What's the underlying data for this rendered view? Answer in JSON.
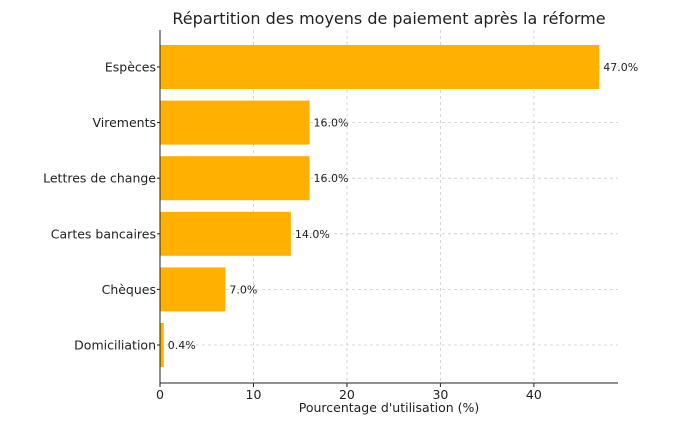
{
  "chart_data": {
    "type": "bar",
    "orientation": "horizontal",
    "title": "Répartition des moyens de paiement après la réforme",
    "xlabel": "Pourcentage d'utilisation (%)",
    "ylabel": "",
    "categories": [
      "Espèces",
      "Virements",
      "Lettres de change",
      "Cartes bancaires",
      "Chèques",
      "Domiciliation"
    ],
    "values": [
      47.0,
      16.0,
      16.0,
      14.0,
      7.0,
      0.4
    ],
    "value_labels": [
      "47.0%",
      "16.0%",
      "16.0%",
      "14.0%",
      "7.0%",
      "0.4%"
    ],
    "xlim": [
      0,
      49
    ],
    "xticks": [
      0,
      10,
      20,
      30,
      40
    ],
    "xtick_labels": [
      "0",
      "10",
      "20",
      "30",
      "40"
    ],
    "grid": true,
    "bar_color": "#FFB000"
  }
}
